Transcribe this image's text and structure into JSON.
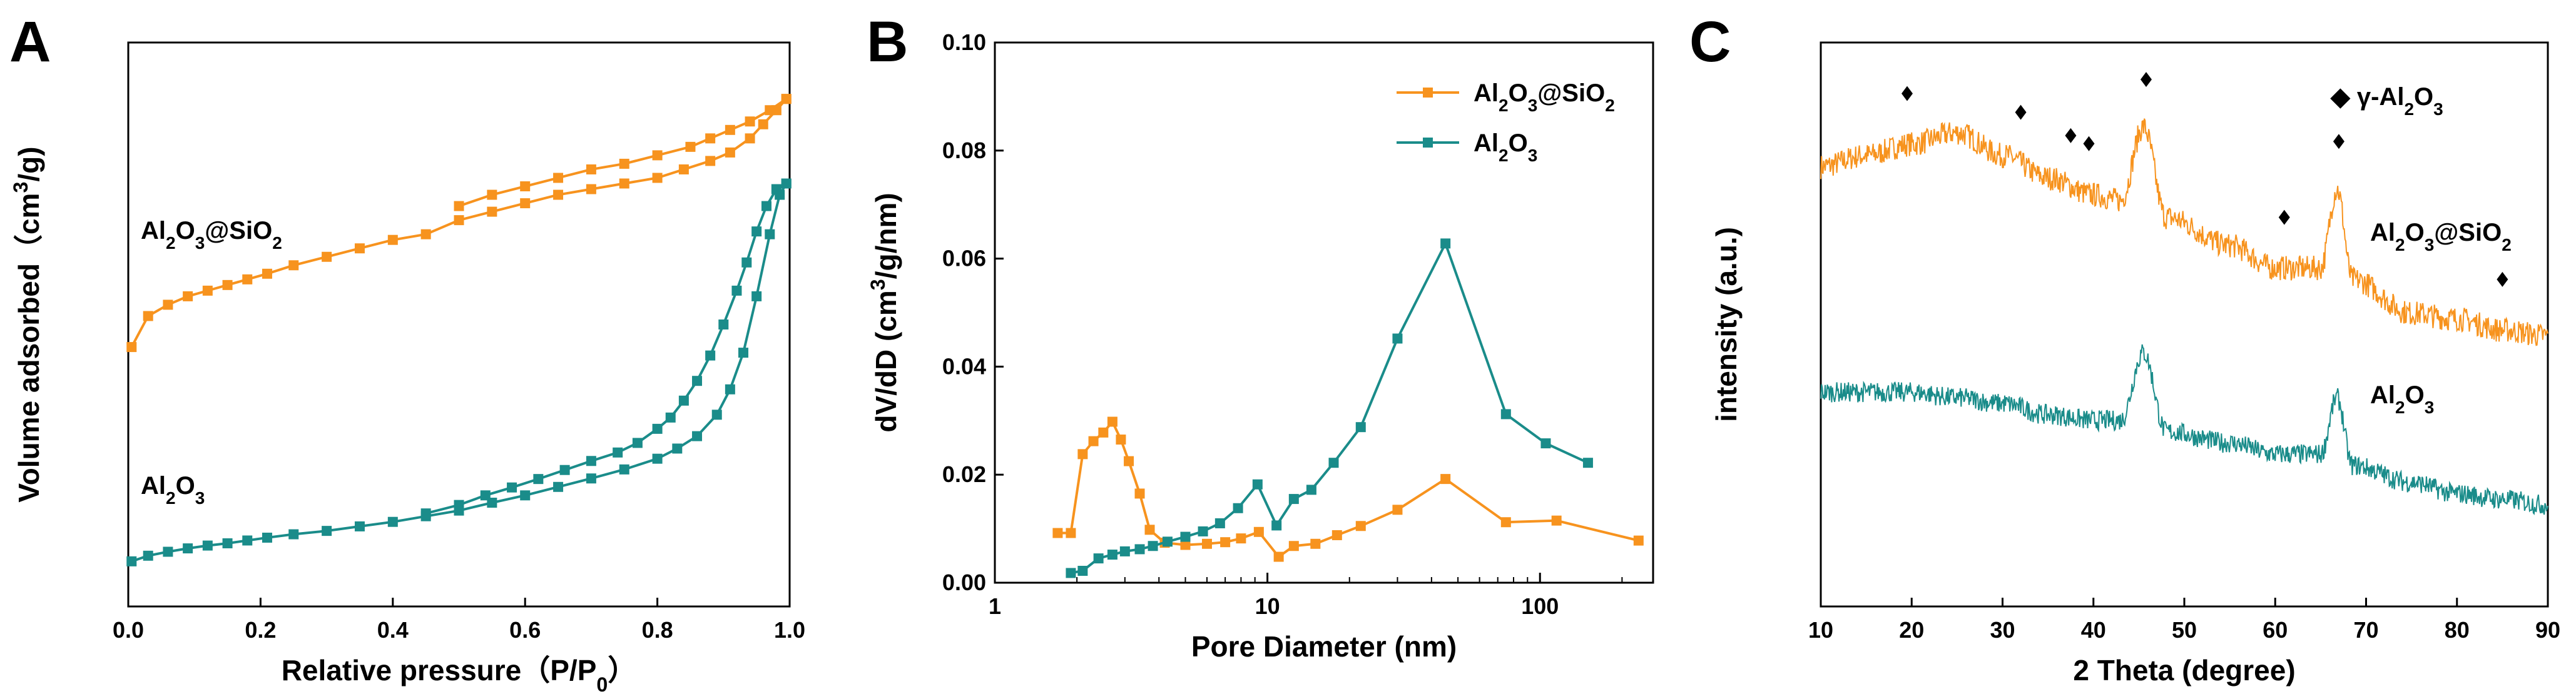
{
  "colors": {
    "orange": "#F7931E",
    "teal": "#1A8C8A",
    "axis": "#000000"
  },
  "chart_data": [
    {
      "panel": "A",
      "type": "line",
      "xlabel": "Relative pressure（P/P0）",
      "xlabel_parts": [
        "Relative pressure（P/P",
        "0",
        "）"
      ],
      "ylabel": "Volume adsorbed（cm3/g)",
      "ylabel_parts": [
        "Volume adsorbed（cm",
        "3",
        "/g)"
      ],
      "xlim": [
        0.0,
        1.0
      ],
      "ylim": [
        0,
        100
      ],
      "xticks": [
        "0.0",
        "0.2",
        "0.4",
        "0.6",
        "0.8",
        "1.0"
      ],
      "yticks": [],
      "annotations": [
        {
          "text": "Al2O3@SiO2",
          "parts": [
            "Al",
            "2",
            "O",
            "3",
            "@SiO",
            "2"
          ],
          "near": "orange-left",
          "color": "#000000"
        },
        {
          "text": "Al2O3",
          "parts": [
            "Al",
            "2",
            "O",
            "3"
          ],
          "near": "teal-left",
          "color": "#000000"
        }
      ],
      "series": [
        {
          "name": "Al2O3@SiO2 adsorption",
          "color": "#F7931E",
          "x": [
            0.005,
            0.03,
            0.06,
            0.09,
            0.12,
            0.15,
            0.18,
            0.21,
            0.25,
            0.3,
            0.35,
            0.4,
            0.45,
            0.5,
            0.55,
            0.6,
            0.65,
            0.7,
            0.75,
            0.8,
            0.84,
            0.88,
            0.91,
            0.94,
            0.96,
            0.98,
            0.995
          ],
          "y": [
            46,
            51.5,
            53.5,
            55,
            56,
            57,
            58,
            59,
            60.5,
            62,
            63.5,
            65,
            66,
            68.5,
            70,
            71.5,
            73,
            74,
            75,
            76,
            77.5,
            79,
            80.5,
            83,
            85.5,
            88,
            90
          ]
        },
        {
          "name": "Al2O3@SiO2 desorption",
          "color": "#F7931E",
          "x": [
            0.995,
            0.97,
            0.94,
            0.91,
            0.88,
            0.85,
            0.8,
            0.75,
            0.7,
            0.65,
            0.6,
            0.55,
            0.5
          ],
          "y": [
            90,
            88,
            86,
            84.5,
            83,
            81.5,
            80,
            78.5,
            77.5,
            76,
            74.5,
            73,
            71
          ]
        },
        {
          "name": "Al2O3 adsorption",
          "color": "#1A8C8A",
          "x": [
            0.005,
            0.03,
            0.06,
            0.09,
            0.12,
            0.15,
            0.18,
            0.21,
            0.25,
            0.3,
            0.35,
            0.4,
            0.45,
            0.5,
            0.55,
            0.6,
            0.65,
            0.7,
            0.75,
            0.8,
            0.83,
            0.86,
            0.89,
            0.91,
            0.93,
            0.95,
            0.97,
            0.985,
            0.995
          ],
          "y": [
            8,
            9,
            9.7,
            10.3,
            10.8,
            11.2,
            11.7,
            12.2,
            12.8,
            13.4,
            14.2,
            15,
            16,
            17,
            18.4,
            19.7,
            21.2,
            22.7,
            24.3,
            26.2,
            28,
            30.2,
            34,
            38.5,
            45,
            55,
            66,
            73,
            75
          ]
        },
        {
          "name": "Al2O3 desorption",
          "color": "#1A8C8A",
          "x": [
            0.995,
            0.98,
            0.965,
            0.95,
            0.935,
            0.92,
            0.9,
            0.88,
            0.86,
            0.84,
            0.82,
            0.8,
            0.77,
            0.74,
            0.7,
            0.66,
            0.62,
            0.58,
            0.54,
            0.5,
            0.45
          ],
          "y": [
            75,
            74,
            71,
            66.5,
            61,
            56,
            50,
            44.5,
            40,
            36.5,
            33.5,
            31.5,
            29,
            27.3,
            25.8,
            24.2,
            22.6,
            21.1,
            19.7,
            18,
            16.5
          ]
        }
      ]
    },
    {
      "panel": "B",
      "type": "line",
      "xscale": "log",
      "xlabel": "Pore Diameter (nm)",
      "ylabel": "dV/dD (cm3/g/nm)",
      "ylabel_parts": [
        "dV/dD (cm",
        "3",
        "/g/nm)"
      ],
      "xlim": [
        1,
        260
      ],
      "ylim": [
        0.0,
        0.1
      ],
      "xticks": [
        {
          "value": 1,
          "label": "1"
        },
        {
          "value": 10,
          "label": "10"
        },
        {
          "value": 100,
          "label": "100"
        }
      ],
      "yticks": [
        "0.00",
        "0.02",
        "0.04",
        "0.06",
        "0.08",
        "0.10"
      ],
      "legend": {
        "position": "top-right"
      },
      "series": [
        {
          "name": "Al2O3@SiO2",
          "legend_parts": [
            "Al",
            "2",
            "O",
            "3",
            "@SiO",
            "2"
          ],
          "color": "#F7931E",
          "x": [
            1.7,
            1.9,
            2.1,
            2.3,
            2.5,
            2.7,
            2.9,
            3.1,
            3.4,
            3.7,
            4.2,
            5,
            6,
            7,
            8,
            9.3,
            11,
            12.5,
            15,
            18,
            22,
            30,
            45,
            75,
            115,
            230
          ],
          "y": [
            0.0092,
            0.0092,
            0.0238,
            0.0262,
            0.0278,
            0.0298,
            0.0265,
            0.0225,
            0.0165,
            0.0098,
            0.0074,
            0.007,
            0.0072,
            0.0075,
            0.0082,
            0.0094,
            0.0048,
            0.0068,
            0.0072,
            0.0088,
            0.0105,
            0.0135,
            0.0192,
            0.0112,
            0.0115,
            0.0078
          ]
        },
        {
          "name": "Al2O3",
          "legend_parts": [
            "Al",
            "2",
            "O",
            "3"
          ],
          "color": "#1A8C8A",
          "x": [
            1.9,
            2.1,
            2.4,
            2.7,
            3,
            3.4,
            3.8,
            4.3,
            5,
            5.8,
            6.7,
            7.8,
            9.2,
            10.8,
            12.5,
            14.5,
            17.5,
            22,
            30,
            45,
            75,
            105,
            150
          ],
          "y": [
            0.0018,
            0.0022,
            0.0045,
            0.0052,
            0.0058,
            0.0062,
            0.0068,
            0.0076,
            0.0085,
            0.0095,
            0.011,
            0.0138,
            0.0182,
            0.0106,
            0.0155,
            0.0172,
            0.0222,
            0.0288,
            0.0452,
            0.0628,
            0.0312,
            0.0258,
            0.0222
          ]
        }
      ]
    },
    {
      "panel": "C",
      "type": "line",
      "xlabel": "2 Theta (degree)",
      "ylabel": "intensity (a.u.)",
      "xlim": [
        10,
        90
      ],
      "ylim": [
        0,
        100
      ],
      "xticks": [
        "10",
        "20",
        "30",
        "40",
        "50",
        "60",
        "70",
        "80",
        "90"
      ],
      "yticks": [],
      "legend_note": {
        "text": "◆ γ-Al2O3",
        "parts": [
          "◆ γ-Al",
          "2",
          "O",
          "3"
        ]
      },
      "markers_2theta": [
        19.5,
        32,
        37.5,
        39.5,
        45.8,
        61,
        67,
        85
      ],
      "series": [
        {
          "name": "Al2O3@SiO2",
          "label_parts": [
            "Al",
            "2",
            "O",
            "3",
            "@SiO",
            "2"
          ],
          "color": "#F7931E",
          "profile": [
            [
              10,
              78
            ],
            [
              15,
              80
            ],
            [
              20,
              82
            ],
            [
              25,
              84
            ],
            [
              30,
              80
            ],
            [
              35,
              76
            ],
            [
              40,
              73
            ],
            [
              43,
              72
            ],
            [
              45.5,
              85
            ],
            [
              48,
              69
            ],
            [
              55,
              64
            ],
            [
              60,
              60
            ],
            [
              65,
              60
            ],
            [
              66.8,
              74
            ],
            [
              68.5,
              58
            ],
            [
              75,
              52
            ],
            [
              80,
              51
            ],
            [
              85,
              49
            ],
            [
              90,
              48
            ]
          ],
          "noise": 2.2
        },
        {
          "name": "Al2O3",
          "label_parts": [
            "Al",
            "2",
            "O",
            "3"
          ],
          "color": "#1A8C8A",
          "profile": [
            [
              10,
              38
            ],
            [
              15,
              38
            ],
            [
              20,
              38
            ],
            [
              25,
              37
            ],
            [
              30,
              36
            ],
            [
              35,
              34
            ],
            [
              40,
              33
            ],
            [
              43,
              33
            ],
            [
              45.5,
              45
            ],
            [
              48,
              31
            ],
            [
              55,
              29
            ],
            [
              60,
              27
            ],
            [
              65,
              27
            ],
            [
              66.8,
              37
            ],
            [
              68.5,
              25
            ],
            [
              75,
              22
            ],
            [
              80,
              20
            ],
            [
              85,
              19
            ],
            [
              90,
              18
            ]
          ],
          "noise": 1.8
        }
      ]
    }
  ]
}
